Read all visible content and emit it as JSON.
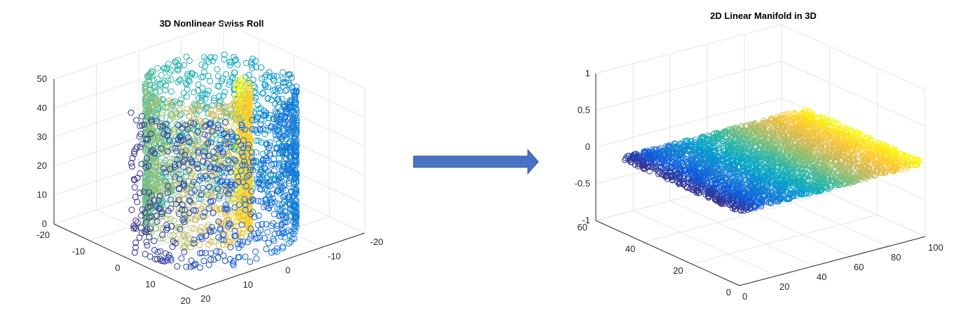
{
  "chart_data": [
    {
      "type": "scatter",
      "title": "3D Nonlinear Swiss Roll",
      "marker": "open-circle",
      "colormap": "parula",
      "axes": {
        "x": {
          "ticks": [
            -20,
            -10,
            0,
            10,
            20
          ],
          "range": [
            -20,
            20
          ]
        },
        "y": {
          "ticks": [
            20,
            10,
            0,
            -10,
            -20
          ],
          "range": [
            -20,
            20
          ]
        },
        "z": {
          "ticks": [
            0,
            10,
            20,
            30,
            40,
            50
          ],
          "range": [
            0,
            50
          ]
        }
      },
      "grid": true,
      "surface": {
        "shape": "swiss-roll",
        "theta_range": [
          4.7,
          14.1
        ],
        "height_range": [
          0,
          50
        ],
        "color_by": "theta"
      }
    },
    {
      "type": "scatter",
      "title": "2D Linear Manifold in 3D",
      "marker": "open-circle",
      "colormap": "parula",
      "axes": {
        "x": {
          "ticks": [
            0,
            20,
            40,
            60,
            80,
            100
          ],
          "range": [
            0,
            100
          ]
        },
        "y": {
          "ticks": [
            0,
            20,
            40,
            60
          ],
          "range": [
            0,
            60
          ]
        },
        "z": {
          "ticks": [
            -1,
            -0.5,
            0,
            0.5,
            1
          ],
          "range": [
            -1,
            1
          ]
        }
      },
      "grid": true,
      "surface": {
        "shape": "plane",
        "x_range": [
          0,
          100
        ],
        "y_range": [
          0,
          50
        ],
        "z_value": 0,
        "color_by": "x"
      }
    }
  ],
  "arrow": {
    "direction": "right",
    "color": "#4a72c4",
    "outline": "#2f528f"
  },
  "colors": {
    "parula": [
      "#352a87",
      "#0f5cdd",
      "#1481d6",
      "#06a4ca",
      "#2eb7a4",
      "#87bf77",
      "#d1bb59",
      "#fec832",
      "#f9fb0e"
    ]
  }
}
